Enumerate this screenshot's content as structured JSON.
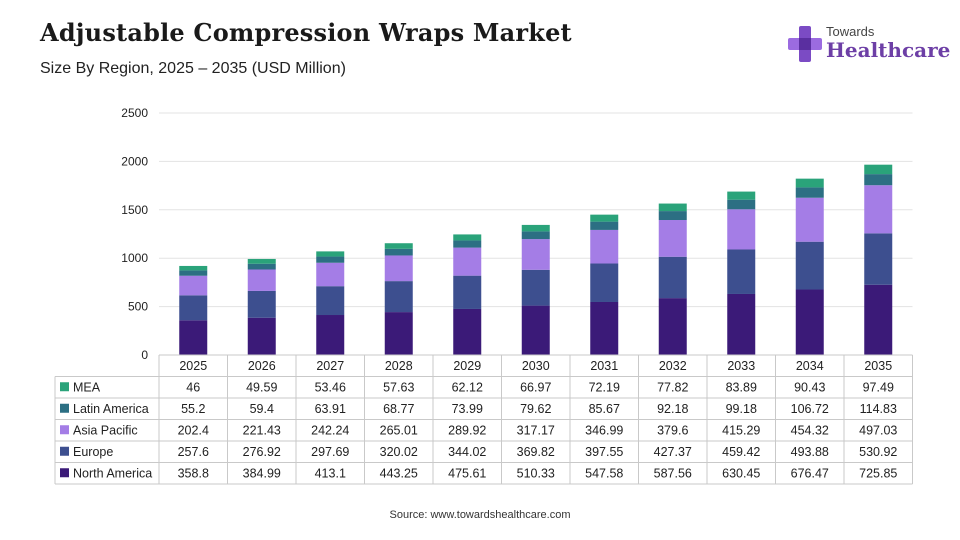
{
  "header": {
    "title": "Adjustable Compression Wraps Market",
    "subtitle": "Size By Region, 2025 – 2035 (USD Million)"
  },
  "logo": {
    "top_text": "Towards",
    "main_text": "Healthcare"
  },
  "footer": {
    "source": "Source: www.towardshealthcare.com"
  },
  "colors": {
    "North America": "#3b1a78",
    "Europe": "#3d4f8f",
    "Asia Pacific": "#a47de6",
    "Latin America": "#2c6f83",
    "MEA": "#2aa37a"
  },
  "chart_data": {
    "type": "bar",
    "stacked": true,
    "categories": [
      "2025",
      "2026",
      "2027",
      "2028",
      "2029",
      "2030",
      "2031",
      "2032",
      "2033",
      "2034",
      "2035"
    ],
    "ylim": [
      0,
      2500
    ],
    "yticks": [
      0,
      500,
      1000,
      1500,
      2000,
      2500
    ],
    "grid": true,
    "legend_placement": "data-table",
    "series": [
      {
        "name": "North America",
        "values": [
          358.8,
          384.99,
          413.1,
          443.25,
          475.61,
          510.33,
          547.58,
          587.56,
          630.45,
          676.47,
          725.85
        ]
      },
      {
        "name": "Europe",
        "values": [
          257.6,
          276.92,
          297.69,
          320.02,
          344.02,
          369.82,
          397.55,
          427.37,
          459.42,
          493.88,
          530.92
        ]
      },
      {
        "name": "Asia Pacific",
        "values": [
          202.4,
          221.43,
          242.24,
          265.01,
          289.92,
          317.17,
          346.99,
          379.6,
          415.29,
          454.32,
          497.03
        ]
      },
      {
        "name": "Latin America",
        "values": [
          55.2,
          59.4,
          63.91,
          68.77,
          73.99,
          79.62,
          85.67,
          92.18,
          99.18,
          106.72,
          114.83
        ]
      },
      {
        "name": "MEA",
        "values": [
          46,
          49.59,
          53.46,
          57.63,
          62.12,
          66.97,
          72.19,
          77.82,
          83.89,
          90.43,
          97.49
        ]
      }
    ],
    "table_order": [
      "MEA",
      "Latin America",
      "Asia Pacific",
      "Europe",
      "North America"
    ]
  }
}
